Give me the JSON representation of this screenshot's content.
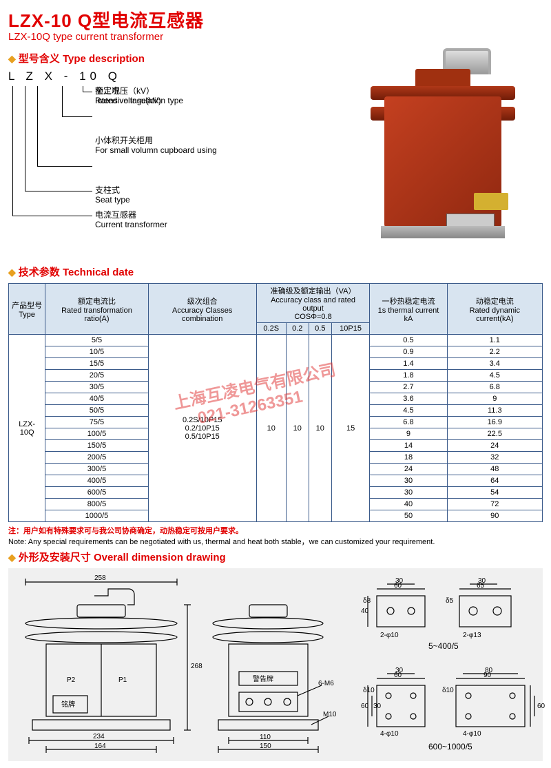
{
  "title": {
    "cn": "LZX-10 Q型电流互感器",
    "en": "LZX-10Q  type current transformer"
  },
  "sections": {
    "type_desc": {
      "hdr": "型号含义 Type description"
    },
    "tech": {
      "hdr": "技术参数 Technical date"
    },
    "dim": {
      "hdr": "外形及安装尺寸 Overall dimension drawing"
    }
  },
  "model_breakdown": {
    "letters": "L Z X - 10 Q",
    "items": [
      {
        "cn": "全工况",
        "en": "Intensive insulation type"
      },
      {
        "cn": "额定电压（kV）",
        "en": "Rated voltage(kV)"
      },
      {
        "cn": "小体积开关柜用",
        "en": "For small volumn cupboard using"
      },
      {
        "cn": "支柱式",
        "en": "Seat type"
      },
      {
        "cn": "电流互感器",
        "en": "Current transformer"
      }
    ]
  },
  "table": {
    "headers": {
      "type": {
        "cn": "产品型号",
        "en": "Type"
      },
      "ratio": {
        "cn": "额定电流比",
        "en": "Rated transformation ratio(A)"
      },
      "classes": {
        "cn": "级次组合",
        "en": "Accuracy Classes combination"
      },
      "accuracy": {
        "cn": "准确级及额定输出（VA）",
        "en": "Accuracy class and rated output",
        "sub": "COSΦ=0.8"
      },
      "acc_cols": [
        "0.2S",
        "0.2",
        "0.5",
        "10P15"
      ],
      "thermal": {
        "cn": "一秒热稳定电流",
        "en": "1s thermal current kA"
      },
      "dynamic": {
        "cn": "动稳定电流",
        "en": "Rated dynamic current(kA)"
      }
    },
    "type_val": "LZX-10Q",
    "classes_val": [
      "0.2S/10P15",
      "0.2/10P15",
      "0.5/10P15"
    ],
    "acc_vals": [
      "10",
      "10",
      "10",
      "15"
    ],
    "rows": [
      {
        "ratio": "5/5",
        "thermal": "0.5",
        "dynamic": "1.1"
      },
      {
        "ratio": "10/5",
        "thermal": "0.9",
        "dynamic": "2.2"
      },
      {
        "ratio": "15/5",
        "thermal": "1.4",
        "dynamic": "3.4"
      },
      {
        "ratio": "20/5",
        "thermal": "1.8",
        "dynamic": "4.5"
      },
      {
        "ratio": "30/5",
        "thermal": "2.7",
        "dynamic": "6.8"
      },
      {
        "ratio": "40/5",
        "thermal": "3.6",
        "dynamic": "9"
      },
      {
        "ratio": "50/5",
        "thermal": "4.5",
        "dynamic": "11.3"
      },
      {
        "ratio": "75/5",
        "thermal": "6.8",
        "dynamic": "16.9"
      },
      {
        "ratio": "100/5",
        "thermal": "9",
        "dynamic": "22.5"
      },
      {
        "ratio": "150/5",
        "thermal": "14",
        "dynamic": "24"
      },
      {
        "ratio": "200/5",
        "thermal": "18",
        "dynamic": "32"
      },
      {
        "ratio": "300/5",
        "thermal": "24",
        "dynamic": "48"
      },
      {
        "ratio": "400/5",
        "thermal": "30",
        "dynamic": "64"
      },
      {
        "ratio": "600/5",
        "thermal": "30",
        "dynamic": "54"
      },
      {
        "ratio": "800/5",
        "thermal": "40",
        "dynamic": "72"
      },
      {
        "ratio": "1000/5",
        "thermal": "50",
        "dynamic": "90"
      }
    ]
  },
  "note": {
    "cn": "注：用户如有特殊要求可与我公司协商确定，动热稳定可按用户要求。",
    "en": "Note: Any special requirements can be negotiated with us, thermal and heat both stable，we can customized your requirement."
  },
  "watermark": {
    "line1": "上海互凌电气有限公司",
    "line2": "021-31263351"
  },
  "dimensions": {
    "front": {
      "w": "258",
      "h": "268",
      "base_inner": "164",
      "base_outer": "234",
      "p1": "P1",
      "p2": "P2",
      "nameplate": "铭牌"
    },
    "side": {
      "inner": "110",
      "outer": "150",
      "m6": "6-M6",
      "m10": "M10",
      "warn": "警告牌"
    },
    "plate_small": {
      "label": "5~400/5",
      "w1": "60",
      "w2": "65",
      "h": "40",
      "d8": "δ8",
      "d5": "δ5",
      "holes1": "2-φ10",
      "holes2": "2-φ13",
      "inner": "30"
    },
    "plate_large": {
      "label": "600~1000/5",
      "w1": "60",
      "w2": "90",
      "w2i": "80",
      "h": "60",
      "hi": "30",
      "d10": "δ10",
      "holes": "4-φ10",
      "inner": "30"
    }
  },
  "colors": {
    "primary_red": "#e10000",
    "diamond": "#e8a020",
    "table_border": "#3a5a8a",
    "table_header_bg": "#d8e4f0",
    "dim_bg": "#f0f0f0",
    "ct_body": "#b03818"
  }
}
